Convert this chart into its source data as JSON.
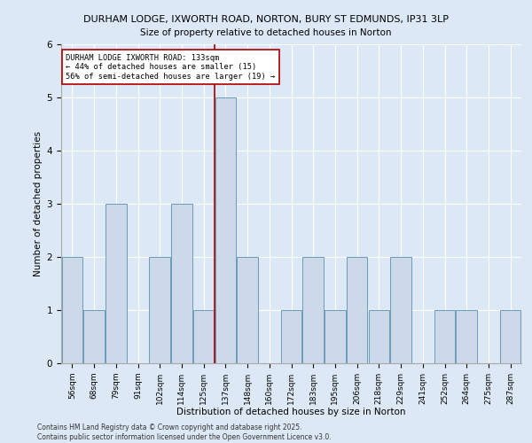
{
  "title1": "DURHAM LODGE, IXWORTH ROAD, NORTON, BURY ST EDMUNDS, IP31 3LP",
  "title2": "Size of property relative to detached houses in Norton",
  "xlabel": "Distribution of detached houses by size in Norton",
  "ylabel": "Number of detached properties",
  "categories": [
    "56sqm",
    "68sqm",
    "79sqm",
    "91sqm",
    "102sqm",
    "114sqm",
    "125sqm",
    "137sqm",
    "148sqm",
    "160sqm",
    "172sqm",
    "183sqm",
    "195sqm",
    "206sqm",
    "218sqm",
    "229sqm",
    "241sqm",
    "252sqm",
    "264sqm",
    "275sqm",
    "287sqm"
  ],
  "values": [
    2,
    1,
    3,
    0,
    2,
    3,
    1,
    5,
    2,
    0,
    1,
    2,
    1,
    2,
    1,
    2,
    0,
    1,
    1,
    0,
    1
  ],
  "bar_color": "#ccd9e8",
  "bar_edge_color": "#6b9ab8",
  "highlight_index": 7,
  "vline_color": "#aa0000",
  "annotation_text": "DURHAM LODGE IXWORTH ROAD: 133sqm\n← 44% of detached houses are smaller (15)\n56% of semi-detached houses are larger (19) →",
  "annotation_box_color": "#ffffff",
  "annotation_box_edge": "#aa0000",
  "footer": "Contains HM Land Registry data © Crown copyright and database right 2025.\nContains public sector information licensed under the Open Government Licence v3.0.",
  "ylim": [
    0,
    6
  ],
  "yticks": [
    0,
    1,
    2,
    3,
    4,
    5,
    6
  ],
  "background_color": "#dce8f5",
  "grid_color": "#ffffff",
  "spine_color": "#aaaaaa"
}
